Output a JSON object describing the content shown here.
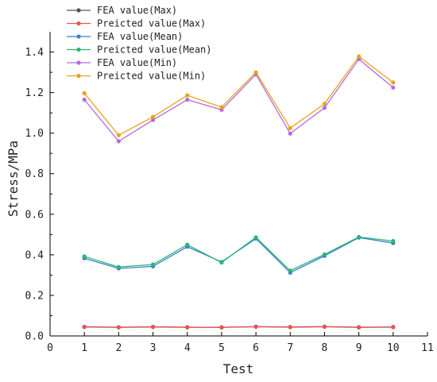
{
  "chart_data": {
    "type": "line",
    "xlabel": "Test",
    "ylabel": "Stress/MPa",
    "xlim": [
      0,
      11
    ],
    "ylim": [
      0,
      1.5
    ],
    "x_ticks": [
      0,
      1,
      2,
      3,
      4,
      5,
      6,
      7,
      8,
      9,
      10,
      11
    ],
    "y_ticks": [
      0.0,
      0.2,
      0.4,
      0.6,
      0.8,
      1.0,
      1.2,
      1.4
    ],
    "y_tick_labels": [
      "0.0",
      "0.2",
      "0.4",
      "0.6",
      "0.8",
      "1.0",
      "1.2",
      "1.4"
    ],
    "grid": false,
    "legend_position": "top-left",
    "x": [
      1,
      2,
      3,
      4,
      5,
      6,
      7,
      8,
      9,
      10
    ],
    "series": [
      {
        "name": "FEA value(Max)",
        "color": "#555555",
        "values": [
          0.045,
          0.043,
          0.045,
          0.043,
          0.042,
          0.046,
          0.044,
          0.046,
          0.043,
          0.044
        ]
      },
      {
        "name": "Preicted value(Max)",
        "color": "#e8554d",
        "values": [
          0.044,
          0.042,
          0.044,
          0.042,
          0.043,
          0.045,
          0.043,
          0.045,
          0.042,
          0.043
        ]
      },
      {
        "name": "FEA value(Mean)",
        "color": "#3a7fd0",
        "values": [
          0.383,
          0.333,
          0.343,
          0.44,
          0.365,
          0.48,
          0.312,
          0.395,
          0.485,
          0.458
        ]
      },
      {
        "name": "Preicted value(Mean)",
        "color": "#2bb673",
        "values": [
          0.392,
          0.34,
          0.352,
          0.45,
          0.362,
          0.486,
          0.322,
          0.402,
          0.488,
          0.468
        ]
      },
      {
        "name": "FEA value(Min)",
        "color": "#b36be0",
        "values": [
          1.165,
          0.96,
          1.065,
          1.165,
          1.115,
          1.29,
          0.998,
          1.125,
          1.365,
          1.225
        ]
      },
      {
        "name": "Preicted value(Min)",
        "color": "#e8a318",
        "values": [
          1.197,
          0.99,
          1.08,
          1.187,
          1.128,
          1.3,
          1.025,
          1.145,
          1.378,
          1.25
        ]
      }
    ]
  }
}
